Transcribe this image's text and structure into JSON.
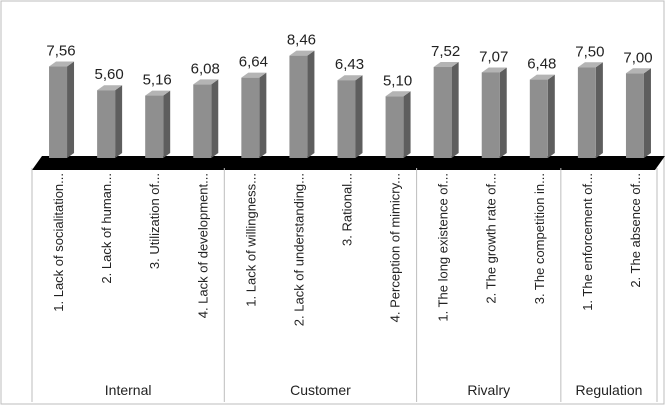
{
  "chart_data": {
    "type": "bar",
    "style": "3d-column",
    "title": "",
    "xlabel": "",
    "ylabel": "",
    "value_format": "comma-decimal-2",
    "ylim": [
      0,
      9
    ],
    "grid": false,
    "legend": "none",
    "bar_color": "#8f8f8f",
    "bar_side_color": "#5e5e5e",
    "bar_top_color": "#b4b4b4",
    "floor_color": "#000000",
    "value_labels": [
      "7,56",
      "5,60",
      "5,16",
      "6,08",
      "6,64",
      "8,46",
      "6,43",
      "5,10",
      "7,52",
      "7,07",
      "6,48",
      "7,50",
      "7,00"
    ],
    "categories": [
      "1. Lack of socialitation...",
      "2. Lack of human...",
      "3. Utilization of...",
      "4. Lack of development...",
      "1. Lack of willingness...",
      "2. Lack of understanding...",
      "3. Rational...",
      "4. Perception of mimicry...",
      "1. The long existence of...",
      "2. The growth rate of...",
      "3. The competition in...",
      "1. The enforcement of...",
      "2. The absence of..."
    ],
    "values": [
      7.56,
      5.6,
      5.16,
      6.08,
      6.64,
      8.46,
      6.43,
      5.1,
      7.52,
      7.07,
      6.48,
      7.5,
      7.0
    ],
    "groups": [
      {
        "name": "Internal",
        "count": 4
      },
      {
        "name": "Customer",
        "count": 4
      },
      {
        "name": "Rivalry",
        "count": 3
      },
      {
        "name": "Regulation",
        "count": 2
      }
    ]
  }
}
